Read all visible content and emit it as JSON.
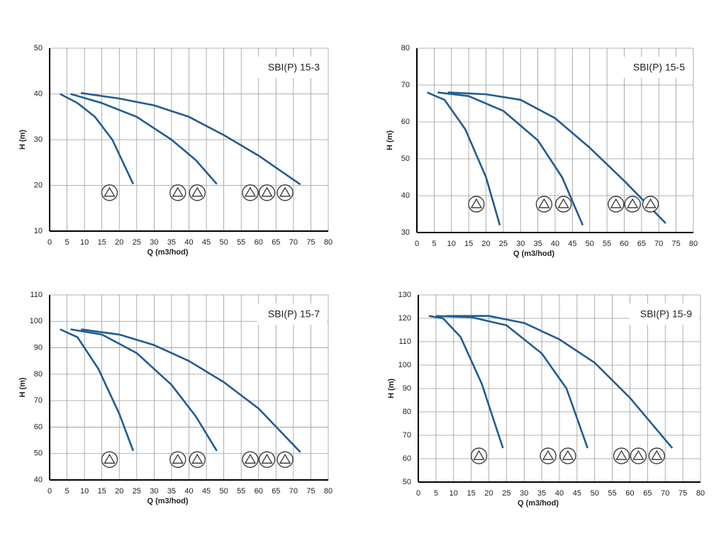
{
  "chart_data": [
    {
      "type": "line",
      "title": "SBI(P) 15-3",
      "x_label": "Q (m3/hod)",
      "y_label": "H (m)",
      "xlim": [
        0,
        80
      ],
      "xticks": [
        0,
        5,
        10,
        15,
        20,
        25,
        30,
        35,
        40,
        45,
        50,
        55,
        60,
        65,
        70,
        75,
        80
      ],
      "ylim": [
        10,
        50
      ],
      "yticks": [
        10,
        20,
        30,
        40,
        50
      ],
      "grid": true,
      "series": [
        {
          "color": "#1f5c94",
          "x": [
            3,
            8,
            13,
            18,
            24
          ],
          "values": [
            40,
            38,
            35,
            30,
            20.3
          ]
        },
        {
          "color": "#1f5c94",
          "x": [
            6,
            15,
            25,
            35,
            42,
            48
          ],
          "values": [
            40,
            38,
            35,
            30,
            25.5,
            20.3
          ]
        },
        {
          "color": "#1f5c94",
          "x": [
            9,
            20,
            30,
            40,
            50,
            60,
            72
          ],
          "values": [
            40.2,
            39,
            37.5,
            35,
            31,
            26.5,
            20.2
          ]
        }
      ]
    },
    {
      "type": "line",
      "title": "SBI(P) 15-5",
      "x_label": "Q (m3/hod)",
      "y_label": "H (m)",
      "xlim": [
        0,
        80
      ],
      "xticks": [
        0,
        5,
        10,
        15,
        20,
        25,
        30,
        35,
        40,
        45,
        50,
        55,
        60,
        65,
        70,
        75,
        80
      ],
      "ylim": [
        30,
        80
      ],
      "yticks": [
        30,
        40,
        50,
        60,
        70,
        80
      ],
      "grid": true,
      "series": [
        {
          "color": "#1f5c94",
          "x": [
            3,
            8,
            14,
            20,
            24
          ],
          "values": [
            68,
            66,
            58,
            45,
            32
          ]
        },
        {
          "color": "#1f5c94",
          "x": [
            6,
            15,
            25,
            35,
            42,
            48
          ],
          "values": [
            68,
            67,
            63,
            55,
            45,
            32
          ]
        },
        {
          "color": "#1f5c94",
          "x": [
            9,
            20,
            30,
            40,
            50,
            60,
            72
          ],
          "values": [
            68,
            67.5,
            66,
            61,
            53,
            44,
            32.5
          ]
        }
      ]
    },
    {
      "type": "line",
      "title": "SBI(P) 15-7",
      "x_label": "Q (m3/hod)",
      "y_label": "H (m)",
      "xlim": [
        0,
        80
      ],
      "xticks": [
        0,
        5,
        10,
        15,
        20,
        25,
        30,
        35,
        40,
        45,
        50,
        55,
        60,
        65,
        70,
        75,
        80
      ],
      "ylim": [
        40,
        110
      ],
      "yticks": [
        40,
        50,
        60,
        70,
        80,
        90,
        100,
        110
      ],
      "grid": true,
      "series": [
        {
          "color": "#1f5c94",
          "x": [
            3,
            8,
            14,
            20,
            24
          ],
          "values": [
            97,
            94,
            82,
            65,
            51
          ]
        },
        {
          "color": "#1f5c94",
          "x": [
            6,
            15,
            25,
            35,
            42,
            48
          ],
          "values": [
            97,
            95,
            88,
            76,
            64,
            51
          ]
        },
        {
          "color": "#1f5c94",
          "x": [
            9,
            20,
            30,
            40,
            50,
            60,
            72
          ],
          "values": [
            97,
            95,
            91,
            85,
            77,
            67,
            50.5
          ]
        }
      ]
    },
    {
      "type": "line",
      "title": "SBI(P) 15-9",
      "x_label": "Q (m3/hod)",
      "y_label": "H (m)",
      "xlim": [
        0,
        80
      ],
      "xticks": [
        0,
        5,
        10,
        15,
        20,
        25,
        30,
        35,
        40,
        45,
        50,
        55,
        60,
        65,
        70,
        75,
        80
      ],
      "ylim": [
        50,
        130
      ],
      "yticks": [
        50,
        60,
        70,
        80,
        90,
        100,
        110,
        120,
        130
      ],
      "grid": true,
      "series": [
        {
          "color": "#1f5c94",
          "x": [
            3,
            7,
            12,
            18,
            24
          ],
          "values": [
            121,
            120,
            112,
            92,
            64.5
          ]
        },
        {
          "color": "#1f5c94",
          "x": [
            5,
            15,
            25,
            35,
            42,
            48
          ],
          "values": [
            121,
            120.5,
            117,
            105,
            90,
            64.5
          ]
        },
        {
          "color": "#1f5c94",
          "x": [
            8,
            20,
            30,
            40,
            50,
            60,
            72
          ],
          "values": [
            121,
            121,
            118,
            111,
            101,
            86,
            64.5
          ]
        }
      ]
    }
  ]
}
